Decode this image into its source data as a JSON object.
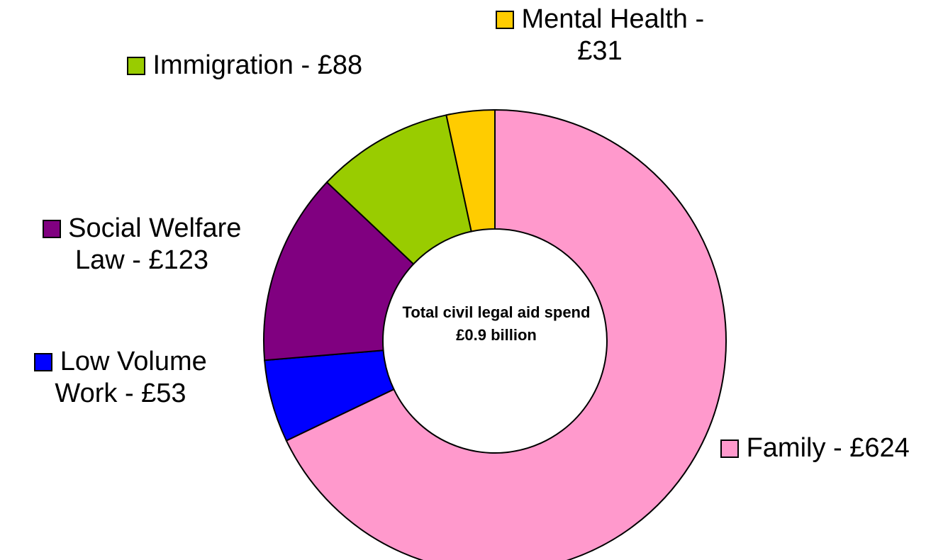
{
  "chart_data": {
    "type": "donut",
    "center_label": "Total civil legal aid spend £0.9 billion",
    "slices": [
      {
        "name": "Family",
        "value": 624,
        "label": "Family - £624",
        "color": "#FF99CC"
      },
      {
        "name": "Low Volume Work",
        "value": 53,
        "label": "Low Volume Work - £53",
        "color": "#0000FF"
      },
      {
        "name": "Social Welfare Law",
        "value": 123,
        "label": "Social Welfare Law - £123",
        "color": "#800080"
      },
      {
        "name": "Immigration",
        "value": 88,
        "label": "Immigration - £88",
        "color": "#99CC00"
      },
      {
        "name": "Mental Health",
        "value": 31,
        "label": "Mental Health - £31",
        "color": "#FFCC00"
      }
    ],
    "legend": false
  }
}
